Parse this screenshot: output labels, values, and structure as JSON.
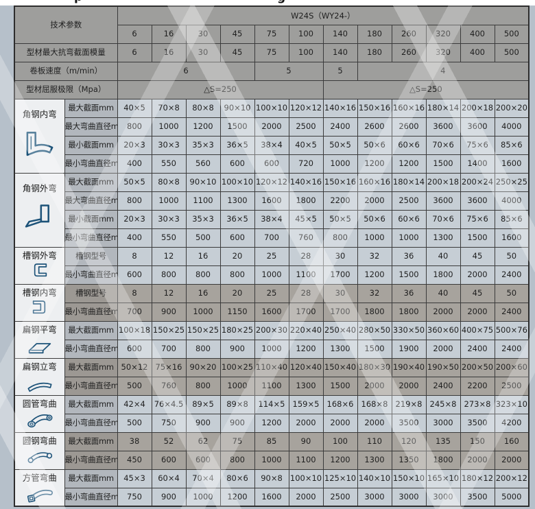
{
  "header": {
    "param_label": "技术参数",
    "model_label": "W24S（WY24-）",
    "columns": [
      "6",
      "16",
      "30",
      "45",
      "75",
      "100",
      "140",
      "180",
      "260",
      "320",
      "400",
      "500"
    ]
  },
  "top_rows": [
    {
      "label": "型材最大抗弯截面模量",
      "cells": [
        {
          "text": "6",
          "span": 1
        },
        {
          "text": "16",
          "span": 1
        },
        {
          "text": "30",
          "span": 1
        },
        {
          "text": "45",
          "span": 1
        },
        {
          "text": "75",
          "span": 1
        },
        {
          "text": "100",
          "span": 1
        },
        {
          "text": "140",
          "span": 1
        },
        {
          "text": "180",
          "span": 1
        },
        {
          "text": "260",
          "span": 1
        },
        {
          "text": "320",
          "span": 1
        },
        {
          "text": "400",
          "span": 1
        },
        {
          "text": "500",
          "span": 1
        }
      ]
    },
    {
      "label": "卷板速度（m/min）",
      "cells": [
        {
          "text": "6",
          "span": 4
        },
        {
          "text": "5",
          "span": 2
        },
        {
          "text": "5",
          "span": 1
        },
        {
          "text": "4",
          "span": 5
        }
      ]
    },
    {
      "label": "型材屈服极限（Mpa）",
      "cells": [
        {
          "text": "△S=250",
          "span": 6
        },
        {
          "text": "△S=250",
          "span": 6
        }
      ]
    }
  ],
  "sections": [
    {
      "name": "角钢内弯",
      "icon": "angle-inner-bend-icon",
      "tone": "light",
      "rows": [
        {
          "label": "最大截面mm",
          "values": [
            "40×5",
            "70×8",
            "80×8",
            "90×10",
            "100×10",
            "120×12",
            "140×16",
            "150×16",
            "160×16",
            "180×14",
            "200×18",
            "200×20"
          ]
        },
        {
          "label": "最大弯曲直径mm",
          "values": [
            "800",
            "1000",
            "1200",
            "1500",
            "2000",
            "2500",
            "2400",
            "2600",
            "2600",
            "3600",
            "3600",
            "4000"
          ]
        },
        {
          "label": "最小截面mm",
          "values": [
            "20×3",
            "30×3",
            "35×3",
            "36×5",
            "38×4",
            "40×5",
            "50×5",
            "50×6",
            "60×6",
            "70×6",
            "75×6",
            "85×6"
          ]
        },
        {
          "label": "最小弯曲直径mm",
          "values": [
            "400",
            "550",
            "560",
            "600",
            "600",
            "720",
            "1000",
            "1200",
            "1200",
            "1500",
            "1400",
            "1600"
          ]
        }
      ]
    },
    {
      "name": "角钢外弯",
      "icon": "angle-outer-bend-icon",
      "tone": "light",
      "rows": [
        {
          "label": "最大截面mm",
          "values": [
            "50×5",
            "80×8",
            "90×10",
            "100×10",
            "120×12",
            "140×16",
            "150×16",
            "160×16",
            "180×14",
            "200×18",
            "200×24",
            "250×25"
          ]
        },
        {
          "label": "最大弯曲直径mm",
          "values": [
            "800",
            "1000",
            "1100",
            "1300",
            "1600",
            "1800",
            "2200",
            "2000",
            "2500",
            "3600",
            "3600",
            "4000"
          ]
        },
        {
          "label": "最小截面mm",
          "values": [
            "20×3",
            "30×3",
            "35×3",
            "36×5",
            "38×4",
            "45×5",
            "50×5",
            "50×6",
            "60×6",
            "70×6",
            "75×6",
            "85×6"
          ]
        },
        {
          "label": "最小弯曲直径mm",
          "values": [
            "400",
            "550",
            "500",
            "600",
            "700",
            "760",
            "800",
            "1000",
            "1000",
            "1300",
            "1500",
            "1600"
          ]
        }
      ]
    },
    {
      "name": "槽钢外弯",
      "icon": "channel-outer-bend-icon",
      "tone": "light",
      "rows": [
        {
          "label": "槽钢型号",
          "values": [
            "8",
            "12",
            "16",
            "20",
            "25",
            "28",
            "30",
            "32",
            "36",
            "40",
            "45",
            "50"
          ]
        },
        {
          "label": "最小弯曲直径mm",
          "values": [
            "600",
            "800",
            "800",
            "800",
            "1000",
            "1100",
            "1700",
            "1200",
            "1500",
            "1800",
            "2000",
            "2400"
          ]
        }
      ]
    },
    {
      "name": "槽钢内弯",
      "icon": "channel-inner-bend-icon",
      "tone": "dark",
      "rows": [
        {
          "label": "槽钢型号",
          "values": [
            "8",
            "12",
            "16",
            "20",
            "25",
            "28",
            "30",
            "32",
            "36",
            "40",
            "45",
            "50"
          ]
        },
        {
          "label": "最小弯曲直径mm",
          "values": [
            "700",
            "900",
            "1000",
            "1150",
            "1600",
            "1700",
            "1700",
            "1800",
            "1800",
            "2000",
            "2000",
            "2400"
          ]
        }
      ]
    },
    {
      "name": "扁钢平弯",
      "icon": "flat-steel-flat-bend-icon",
      "tone": "light",
      "rows": [
        {
          "label": "最大截面mm",
          "values": [
            "100×18",
            "150×25",
            "150×25",
            "180×25",
            "200×30",
            "220×40",
            "250×40",
            "280×50",
            "330×50",
            "360×60",
            "400×75",
            "500×76"
          ]
        },
        {
          "label": "最小弯曲直径mm",
          "values": [
            "600",
            "700",
            "800",
            "900",
            "1000",
            "1200",
            "1300",
            "1500",
            "1900",
            "2000",
            "2400",
            "2400"
          ]
        }
      ]
    },
    {
      "name": "扁钢立弯",
      "icon": "flat-steel-edge-bend-icon",
      "tone": "dark",
      "rows": [
        {
          "label": "最大截面mm",
          "values": [
            "50×12",
            "75×16",
            "90×20",
            "100×25",
            "110×40",
            "120×40",
            "150×40",
            "180×30",
            "190×40",
            "190×50",
            "200×50",
            "200×60"
          ]
        },
        {
          "label": "最小弯曲直径mm",
          "values": [
            "500",
            "760",
            "800",
            "1000",
            "1100",
            "1300",
            "1500",
            "2000",
            "2000",
            "2400",
            "2200",
            "2500"
          ]
        }
      ]
    },
    {
      "name": "圆管弯曲",
      "icon": "round-tube-bend-icon",
      "tone": "light",
      "rows": [
        {
          "label": "最大截面mm",
          "values": [
            "42×4",
            "76×4.5",
            "89×5",
            "89×8",
            "114×5",
            "159×5",
            "168×6",
            "168×8",
            "219×8",
            "245×8",
            "273×8",
            "323×10"
          ]
        },
        {
          "label": "最小弯曲直径mm",
          "values": [
            "500",
            "750",
            "900",
            "900",
            "1200",
            "2000",
            "2000",
            "2000",
            "3500",
            "3000",
            "3500",
            "4200"
          ]
        }
      ]
    },
    {
      "name": "圆钢弯曲",
      "icon": "round-bar-bend-icon",
      "tone": "dark",
      "rows": [
        {
          "label": "最大截面mm",
          "values": [
            "38",
            "52",
            "62",
            "75",
            "85",
            "90",
            "100",
            "110",
            "120",
            "135",
            "150",
            "160"
          ]
        },
        {
          "label": "最小弯曲直径mm",
          "values": [
            "450",
            "600",
            "600",
            "800",
            "1000",
            "1100",
            "1200",
            "1300",
            "1350",
            "1800",
            "2000",
            "2000"
          ]
        }
      ]
    },
    {
      "name": "方管弯曲",
      "icon": "square-tube-bend-icon",
      "tone": "light",
      "rows": [
        {
          "label": "最大截面mm",
          "values": [
            "45×3",
            "60×4",
            "70×4",
            "80×6",
            "90×8",
            "100×10",
            "125×10",
            "140×10",
            "150×10",
            "165×10",
            "180×12",
            "200×12"
          ]
        },
        {
          "label": "最小弯曲直径mm",
          "values": [
            "750",
            "900",
            "1000",
            "1200",
            "1600",
            "2000",
            "2500",
            "3000",
            "3000",
            "3000",
            "3500",
            "5000"
          ]
        }
      ]
    }
  ],
  "top_strip_fragments": [
    "p",
    "g"
  ],
  "colors": {
    "icon_blue": "#1d5379",
    "header_gray": "#9e9e9c",
    "light_cell": "#c6ced5",
    "dark_cell": "#a7a39d",
    "page_background": "#b6c0ca"
  }
}
